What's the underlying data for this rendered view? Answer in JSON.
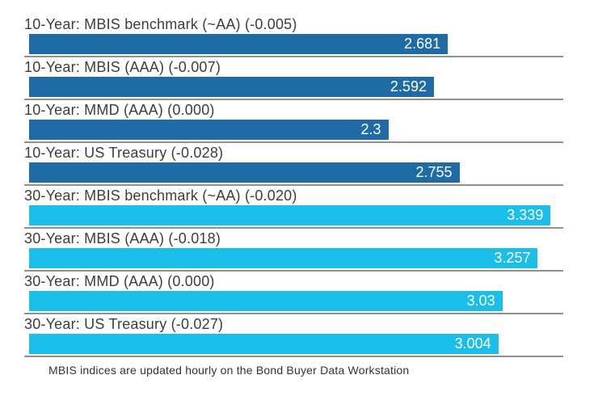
{
  "chart_data": {
    "type": "bar",
    "orientation": "horizontal",
    "title": "",
    "xlabel": "",
    "ylabel": "",
    "xlim": [
      0,
      3.42
    ],
    "grid": false,
    "legend": "none",
    "categories": [
      "10-Year: MBIS benchmark (~AA) (-0.005)",
      "10-Year: MBIS (AAA) (-0.007)",
      "10-Year: MMD (AAA) (0.000)",
      "10-Year: US Treasury (-0.028)",
      "30-Year: MBIS benchmark (~AA) (-0.020)",
      "30-Year: MBIS (AAA) (-0.018)",
      "30-Year: MMD (AAA) (0.000)",
      "30-Year: US Treasury (-0.027)"
    ],
    "values": [
      2.681,
      2.592,
      2.3,
      2.755,
      3.339,
      3.257,
      3.03,
      3.004
    ],
    "value_labels": [
      "2.681",
      "2.592",
      "2.3",
      "2.755",
      "3.339",
      "3.257",
      "3.03",
      "3.004"
    ],
    "groups": [
      "10-year",
      "10-year",
      "10-year",
      "10-year",
      "30-year",
      "30-year",
      "30-year",
      "30-year"
    ],
    "bar_colors": {
      "10-year": "#1e6ba6",
      "30-year": "#1bbde9"
    },
    "footnote": "MBIS indices are updated hourly on the Bond Buyer Data Workstation"
  },
  "colors": {
    "background": "#ffffff",
    "label_text": "#3d3d3d",
    "value_text": "#ffffff",
    "separator": "#909090",
    "footnote_text": "#333333"
  }
}
